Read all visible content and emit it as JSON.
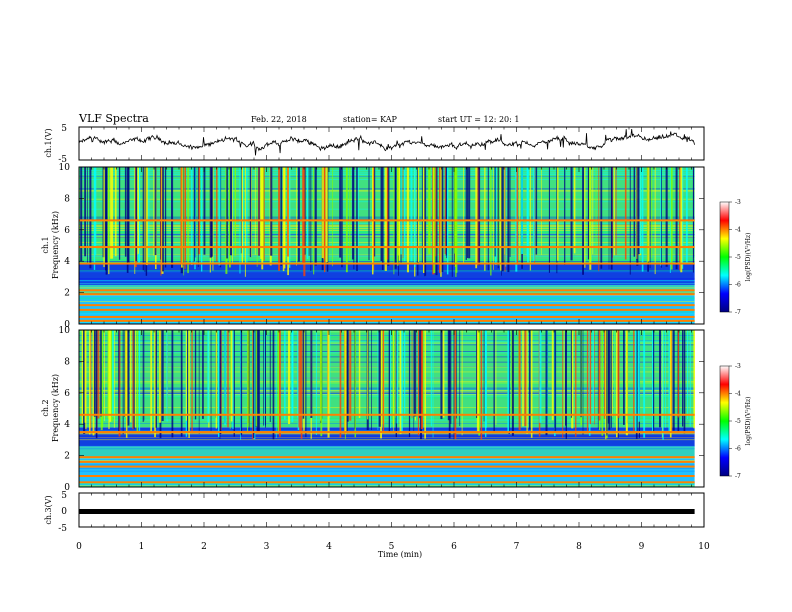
{
  "header": {
    "title": "VLF Spectra",
    "date": "Feb. 22, 2018",
    "station": "station= KAP",
    "start": "start  UT =  12: 20: 1"
  },
  "chart_data": [
    {
      "type": "line",
      "title": "",
      "ylabel": "ch.1(V)",
      "ylim": [
        -5,
        5
      ],
      "yticks": [
        "5",
        "-5"
      ],
      "xlim": [
        0,
        10
      ],
      "x_end": 9.85,
      "y_typical_range": [
        -2.5,
        2.5
      ],
      "color": "#000000"
    },
    {
      "type": "heatmap",
      "title": "",
      "ylabel_top": "ch.1",
      "ylabel": "Frequency (kHz)",
      "ylim": [
        0,
        10
      ],
      "yticks": [
        "0",
        "2",
        "4",
        "6",
        "8",
        "10"
      ],
      "xlim": [
        0,
        10
      ],
      "x_end": 9.85,
      "colorbar": {
        "label": "log(PSD)(V²/Hz)",
        "range": [
          -7,
          -3
        ],
        "ticks": [
          "-3",
          "-4",
          "-5",
          "-6",
          "-7"
        ],
        "colors": [
          "#000080",
          "#0000ff",
          "#00ffff",
          "#00ff00",
          "#ffff00",
          "#ff0000",
          "#ffffff"
        ]
      },
      "lines_khz": [
        0.2,
        0.45,
        0.9,
        1.2,
        1.9,
        2.15,
        3.85,
        4.9,
        6.6
      ]
    },
    {
      "type": "heatmap",
      "title": "",
      "ylabel_top": "ch.2",
      "ylabel": "Frequency (kHz)",
      "ylim": [
        0,
        10
      ],
      "yticks": [
        "0",
        "2",
        "4",
        "6",
        "8",
        "10"
      ],
      "xlim": [
        0,
        10
      ],
      "x_end": 9.85,
      "colorbar": {
        "label": "log(PSD)(V²/Hz)",
        "range": [
          -7,
          -3
        ],
        "ticks": [
          "-3",
          "-4",
          "-5",
          "-6",
          "-7"
        ],
        "colors": [
          "#000080",
          "#0000ff",
          "#00ffff",
          "#00ff00",
          "#ffff00",
          "#ff0000",
          "#ffffff"
        ]
      },
      "lines_khz": [
        0.3,
        0.7,
        1.3,
        1.6,
        1.9,
        3.5,
        4.6
      ]
    },
    {
      "type": "line",
      "title": "",
      "ylabel": "ch.3(V)",
      "ylim": [
        -5,
        5
      ],
      "yticks": [
        "5",
        "0",
        "-5"
      ],
      "xlim": [
        0,
        10
      ],
      "x_end": 9.85,
      "values_constant": 0,
      "color": "#000000"
    }
  ],
  "x_axis": {
    "label": "Time (min)",
    "ticks": [
      "0",
      "1",
      "2",
      "3",
      "4",
      "5",
      "6",
      "7",
      "8",
      "9",
      "10"
    ]
  }
}
